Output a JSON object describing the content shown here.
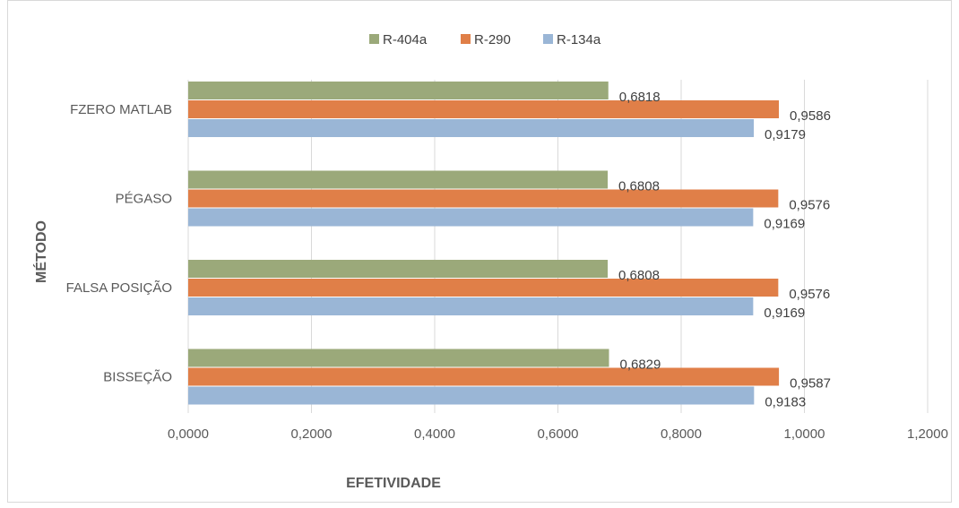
{
  "chart_data": {
    "type": "bar",
    "orientation": "horizontal",
    "categories": [
      "FZERO MATLAB",
      "PÉGASO",
      "FALSA POSIÇÃO",
      "BISSEÇÃO"
    ],
    "series": [
      {
        "name": "R-404a",
        "color": "#9BA97A",
        "values": [
          0.6818,
          0.6808,
          0.6808,
          0.6829
        ],
        "labels": [
          "0,6818",
          "0,6808",
          "0,6808",
          "0,6829"
        ]
      },
      {
        "name": "R-290",
        "color": "#E07F48",
        "values": [
          0.9586,
          0.9576,
          0.9576,
          0.9587
        ],
        "labels": [
          "0,9586",
          "0,9576",
          "0,9576",
          "0,9587"
        ]
      },
      {
        "name": "R-134a",
        "color": "#9AB6D6",
        "values": [
          0.9179,
          0.9169,
          0.9169,
          0.9183
        ],
        "labels": [
          "0,9179",
          "0,9169",
          "0,9169",
          "0,9183"
        ]
      }
    ],
    "xlabel": "EFETIVIDADE",
    "ylabel": "MÉTODO",
    "xlim": [
      0,
      1.2
    ],
    "xticks": [
      0,
      0.2,
      0.4,
      0.6,
      0.8,
      1.0,
      1.2
    ],
    "xtick_labels": [
      "0,0000",
      "0,2000",
      "0,4000",
      "0,6000",
      "0,8000",
      "1,0000",
      "1,2000"
    ],
    "grid": true,
    "legend_position": "top"
  }
}
